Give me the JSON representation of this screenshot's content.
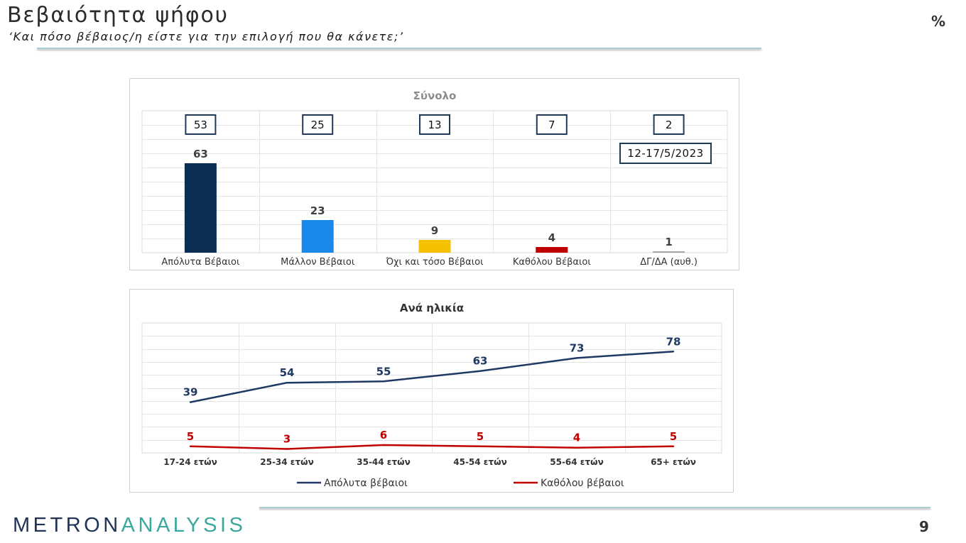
{
  "slide": {
    "title": "Βεβαιότητα ψήφου",
    "subtitle": "‘Και πόσο βέβαιος/η είστε για την επιλογή που θα κάνετε;’",
    "unit_marker": "%",
    "page_number": "9",
    "logo": {
      "part_1": "METRON",
      "part_2": "ANALYSIS",
      "color_1": "#1f3357",
      "color_2": "#3aa89c"
    }
  },
  "chart_data": [
    {
      "type": "bar",
      "title": "Σύνολο",
      "categories": [
        "Απόλυτα Βέβαιοι",
        "Μάλλον Βέβαιοι",
        "Όχι και τόσο Βέβαιοι",
        "Καθόλου Βέβαιοι",
        "ΔΓ/ΔΑ (αυθ.)"
      ],
      "values": [
        63,
        23,
        9,
        4,
        1
      ],
      "colors": [
        "#0b2d52",
        "#1a88e8",
        "#f5c100",
        "#c00000",
        "#a6a6a6"
      ],
      "boxed_values": [
        53,
        25,
        13,
        7,
        2
      ],
      "box_border_color": "#1f3a5a",
      "date_label": "12-17/5/2023",
      "ylim": [
        0,
        100
      ],
      "grid": true,
      "legend": "none"
    },
    {
      "type": "line",
      "title": "Ανά ηλικία",
      "categories": [
        "17-24 ετών",
        "25-34 ετών",
        "35-44 ετών",
        "45-54 ετών",
        "55-64 ετών",
        "65+ ετών"
      ],
      "series": [
        {
          "name": "Απόλυτα βέβαιοι",
          "values": [
            39,
            54,
            55,
            63,
            73,
            78
          ],
          "color": "#1f3864"
        },
        {
          "name": "Καθόλου βέβαιοι",
          "values": [
            5,
            3,
            6,
            5,
            4,
            5
          ],
          "color": "#c00000"
        }
      ],
      "ylim": [
        0,
        100
      ],
      "grid": true,
      "legend": "bottom"
    }
  ]
}
